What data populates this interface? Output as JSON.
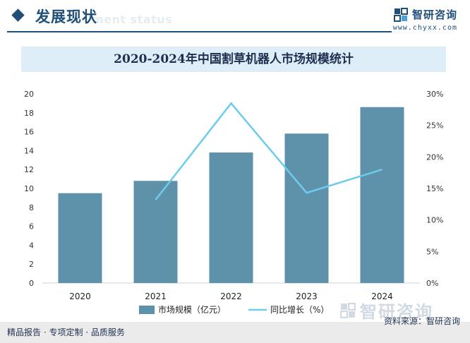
{
  "header": {
    "title": "发展现状",
    "subtitle": "ment status",
    "brand_name": "智研咨询",
    "brand_url": "www.chyxx.com"
  },
  "footer": {
    "left": "精品报告 · 专项定制 · 品质服务",
    "right": "资料来源：智研咨询",
    "watermark": "智研咨询"
  },
  "colors": {
    "bar": "#5e92aa",
    "line": "#6dcbeb",
    "brand": "#1f4e79",
    "title_band": "#deeef8"
  },
  "chart_data": {
    "type": "bar",
    "title": "2020-2024年中国割草机器人市场规模统计",
    "categories": [
      "2020",
      "2021",
      "2022",
      "2023",
      "2024"
    ],
    "series": [
      {
        "name": "市场规模（亿元）",
        "type": "bar",
        "axis": "left",
        "values": [
          9.5,
          10.8,
          13.8,
          15.8,
          18.6
        ]
      },
      {
        "name": "同比增长（%）",
        "type": "line",
        "axis": "right",
        "values": [
          null,
          13.2,
          28.5,
          14.3,
          18.0
        ]
      }
    ],
    "y_left": {
      "min": 0,
      "max": 20,
      "step": 2,
      "ticks": [
        "0",
        "2",
        "4",
        "6",
        "8",
        "10",
        "12",
        "14",
        "16",
        "18",
        "20"
      ]
    },
    "y_right": {
      "min": 0,
      "max": 30,
      "step": 5,
      "ticks": [
        "0%",
        "5%",
        "10%",
        "15%",
        "20%",
        "25%",
        "30%"
      ]
    },
    "grid": false,
    "legend_position": "bottom"
  }
}
